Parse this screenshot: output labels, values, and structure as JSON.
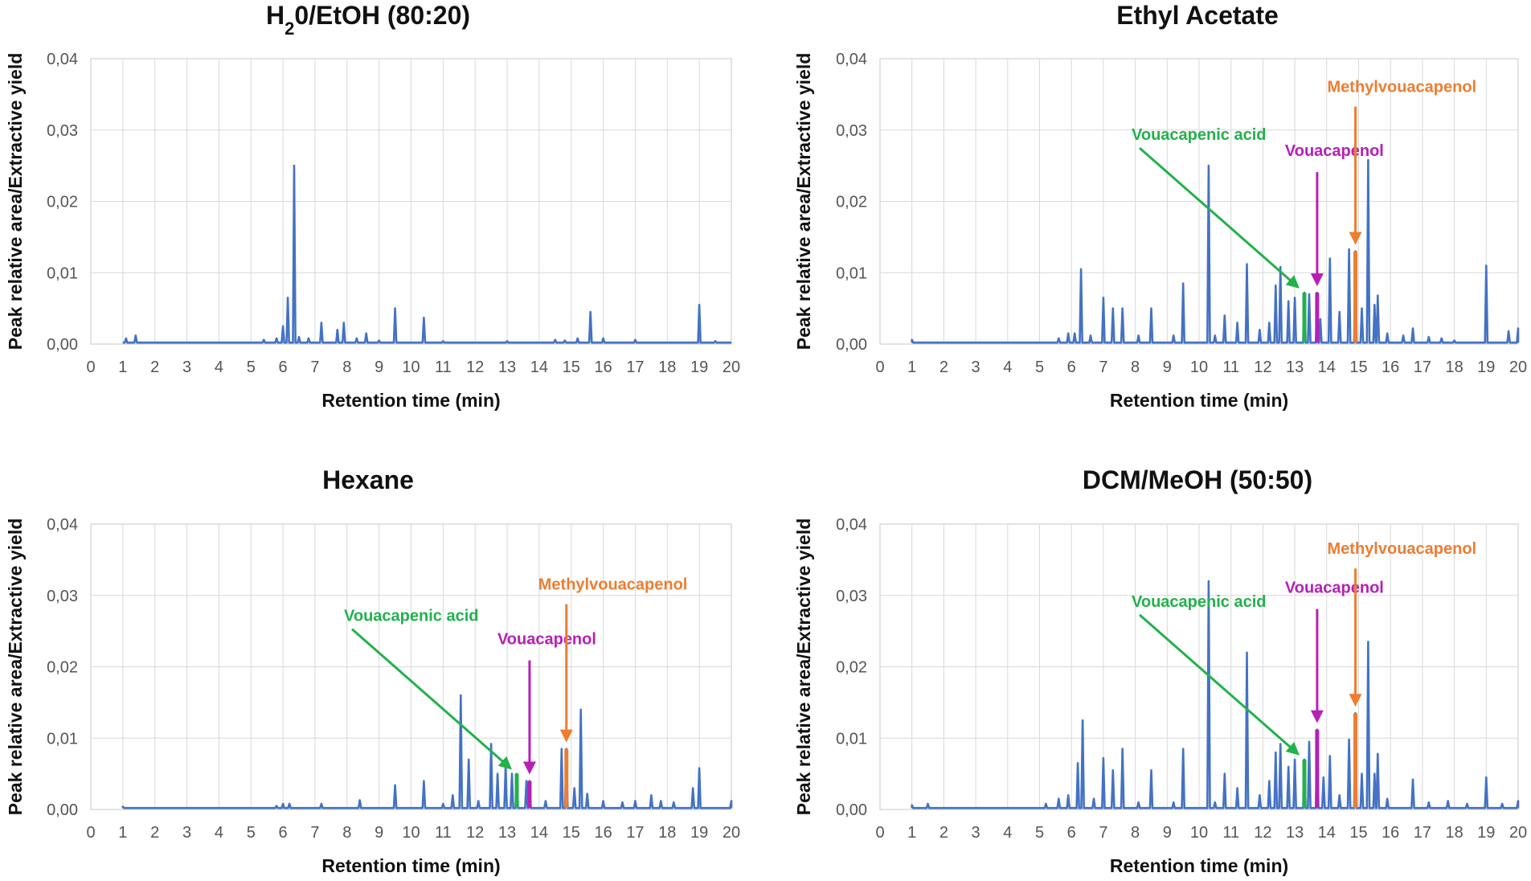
{
  "chart_data": [
    {
      "type": "line",
      "title_main": "H",
      "title_sub": "2",
      "title_rest": "0/EtOH (80:20)",
      "xlabel": "Retention time (min)",
      "ylabel": "Peak relative area/Extractive yield",
      "xlim": [
        0,
        20
      ],
      "ylim": [
        0,
        0.04
      ],
      "xticks": [
        "0",
        "1",
        "2",
        "3",
        "4",
        "5",
        "6",
        "7",
        "8",
        "9",
        "10",
        "11",
        "12",
        "13",
        "14",
        "15",
        "16",
        "17",
        "18",
        "19",
        "20"
      ],
      "yticks": [
        "0,00",
        "0,01",
        "0,02",
        "0,03",
        "0,04"
      ],
      "series_color": "#4472c4",
      "start": 1.0,
      "baseline": 0.0002,
      "peaks": [
        [
          1.1,
          0.0008
        ],
        [
          1.4,
          0.0012
        ],
        [
          5.4,
          0.0006
        ],
        [
          5.8,
          0.0008
        ],
        [
          6.0,
          0.0025
        ],
        [
          6.15,
          0.0065
        ],
        [
          6.35,
          0.025
        ],
        [
          6.5,
          0.001
        ],
        [
          6.8,
          0.0008
        ],
        [
          7.2,
          0.003
        ],
        [
          7.7,
          0.002
        ],
        [
          7.9,
          0.003
        ],
        [
          8.3,
          0.0008
        ],
        [
          8.6,
          0.0015
        ],
        [
          9.0,
          0.0005
        ],
        [
          9.5,
          0.005
        ],
        [
          10.4,
          0.0037
        ],
        [
          11.0,
          0.0004
        ],
        [
          13.0,
          0.0004
        ],
        [
          14.5,
          0.0006
        ],
        [
          14.8,
          0.0005
        ],
        [
          15.2,
          0.0008
        ],
        [
          15.6,
          0.0045
        ],
        [
          16.0,
          0.0008
        ],
        [
          17.0,
          0.0006
        ],
        [
          19.0,
          0.0055
        ],
        [
          19.5,
          0.0004
        ]
      ],
      "annotations": []
    },
    {
      "type": "line",
      "title_main": "Ethyl Acetate",
      "title_sub": "",
      "title_rest": "",
      "xlabel": "Retention time (min)",
      "ylabel": "Peak relative area/Extractive yield",
      "xlim": [
        0,
        20
      ],
      "ylim": [
        0,
        0.04
      ],
      "xticks": [
        "0",
        "1",
        "2",
        "3",
        "4",
        "5",
        "6",
        "7",
        "8",
        "9",
        "10",
        "11",
        "12",
        "13",
        "14",
        "15",
        "16",
        "17",
        "18",
        "19",
        "20"
      ],
      "yticks": [
        "0,00",
        "0,01",
        "0,02",
        "0,03",
        "0,04"
      ],
      "series_color": "#4472c4",
      "start": 1.0,
      "baseline": 0.0002,
      "peaks": [
        [
          1.0,
          0.0006
        ],
        [
          5.6,
          0.0008
        ],
        [
          5.9,
          0.0015
        ],
        [
          6.1,
          0.0015
        ],
        [
          6.3,
          0.0105
        ],
        [
          6.6,
          0.0012
        ],
        [
          7.0,
          0.0065
        ],
        [
          7.3,
          0.005
        ],
        [
          7.6,
          0.005
        ],
        [
          8.1,
          0.0012
        ],
        [
          8.5,
          0.005
        ],
        [
          9.2,
          0.0012
        ],
        [
          9.5,
          0.0085
        ],
        [
          10.3,
          0.025
        ],
        [
          10.5,
          0.0012
        ],
        [
          10.8,
          0.004
        ],
        [
          11.2,
          0.003
        ],
        [
          11.5,
          0.0112
        ],
        [
          11.9,
          0.002
        ],
        [
          12.2,
          0.003
        ],
        [
          12.4,
          0.0082
        ],
        [
          12.55,
          0.0108
        ],
        [
          12.8,
          0.006
        ],
        [
          13.0,
          0.0065
        ],
        [
          13.3,
          0.0072
        ],
        [
          13.45,
          0.007
        ],
        [
          13.7,
          0.0072
        ],
        [
          13.8,
          0.0035
        ],
        [
          14.1,
          0.012
        ],
        [
          14.4,
          0.0045
        ],
        [
          14.7,
          0.0133
        ],
        [
          14.9,
          0.013
        ],
        [
          15.1,
          0.005
        ],
        [
          15.3,
          0.0258
        ],
        [
          15.5,
          0.0055
        ],
        [
          15.6,
          0.0068
        ],
        [
          15.9,
          0.0015
        ],
        [
          16.4,
          0.0012
        ],
        [
          16.7,
          0.0022
        ],
        [
          17.2,
          0.001
        ],
        [
          17.6,
          0.0008
        ],
        [
          18.0,
          0.0005
        ],
        [
          19.0,
          0.011
        ],
        [
          19.7,
          0.0018
        ],
        [
          20.0,
          0.0022
        ]
      ],
      "annotations": [
        {
          "label": "Vouacapenic acid",
          "color": "#22b14c",
          "x": 13.3,
          "y": 0.0072
        },
        {
          "label": "Vouacapenol",
          "color": "#b620b6",
          "x": 13.7,
          "y": 0.0072
        },
        {
          "label": "Methylvouacapenol",
          "color": "#ed7d31",
          "x": 14.9,
          "y": 0.013
        }
      ]
    },
    {
      "type": "line",
      "title_main": "Hexane",
      "title_sub": "",
      "title_rest": "",
      "xlabel": "Retention time (min)",
      "ylabel": "Peak relative area/Extractive yield",
      "xlim": [
        0,
        20
      ],
      "ylim": [
        0,
        0.04
      ],
      "xticks": [
        "0",
        "1",
        "2",
        "3",
        "4",
        "5",
        "6",
        "7",
        "8",
        "9",
        "10",
        "11",
        "12",
        "13",
        "14",
        "15",
        "16",
        "17",
        "18",
        "19",
        "20"
      ],
      "yticks": [
        "0,00",
        "0,01",
        "0,02",
        "0,03",
        "0,04"
      ],
      "series_color": "#4472c4",
      "start": 1.0,
      "baseline": 0.0002,
      "peaks": [
        [
          1.0,
          0.0004
        ],
        [
          5.8,
          0.0005
        ],
        [
          6.0,
          0.0008
        ],
        [
          6.2,
          0.0008
        ],
        [
          7.2,
          0.0008
        ],
        [
          8.4,
          0.0013
        ],
        [
          9.5,
          0.0034
        ],
        [
          10.4,
          0.004
        ],
        [
          11.0,
          0.0008
        ],
        [
          11.3,
          0.002
        ],
        [
          11.55,
          0.016
        ],
        [
          11.8,
          0.007
        ],
        [
          12.1,
          0.0012
        ],
        [
          12.5,
          0.0092
        ],
        [
          12.7,
          0.005
        ],
        [
          12.95,
          0.006
        ],
        [
          13.15,
          0.005
        ],
        [
          13.3,
          0.005
        ],
        [
          13.6,
          0.004
        ],
        [
          13.7,
          0.004
        ],
        [
          14.2,
          0.0012
        ],
        [
          14.7,
          0.0085
        ],
        [
          14.85,
          0.0085
        ],
        [
          15.1,
          0.003
        ],
        [
          15.3,
          0.014
        ],
        [
          15.5,
          0.0022
        ],
        [
          16.0,
          0.0012
        ],
        [
          16.6,
          0.001
        ],
        [
          17.0,
          0.0012
        ],
        [
          17.5,
          0.002
        ],
        [
          17.8,
          0.0012
        ],
        [
          18.2,
          0.001
        ],
        [
          18.8,
          0.003
        ],
        [
          19.0,
          0.0058
        ],
        [
          20.0,
          0.0012
        ]
      ],
      "annotations": [
        {
          "label": "Vouacapenic acid",
          "color": "#22b14c",
          "x": 13.3,
          "y": 0.005
        },
        {
          "label": "Vouacapenol",
          "color": "#b620b6",
          "x": 13.7,
          "y": 0.004
        },
        {
          "label": "Methylvouacapenol",
          "color": "#ed7d31",
          "x": 14.85,
          "y": 0.0085
        }
      ]
    },
    {
      "type": "line",
      "title_main": "DCM/MeOH (50:50)",
      "title_sub": "",
      "title_rest": "",
      "xlabel": "Retention time (min)",
      "ylabel": "Peak relative area/Extractive yield",
      "xlim": [
        0,
        20
      ],
      "ylim": [
        0,
        0.04
      ],
      "xticks": [
        "0",
        "1",
        "2",
        "3",
        "4",
        "5",
        "6",
        "7",
        "8",
        "9",
        "10",
        "11",
        "12",
        "13",
        "14",
        "15",
        "16",
        "17",
        "18",
        "19",
        "20"
      ],
      "yticks": [
        "0,00",
        "0,01",
        "0,02",
        "0,03",
        "0,04"
      ],
      "series_color": "#4472c4",
      "start": 1.0,
      "baseline": 0.0002,
      "peaks": [
        [
          1.0,
          0.0006
        ],
        [
          1.5,
          0.0008
        ],
        [
          5.2,
          0.0008
        ],
        [
          5.6,
          0.0015
        ],
        [
          5.9,
          0.002
        ],
        [
          6.2,
          0.0065
        ],
        [
          6.35,
          0.0125
        ],
        [
          6.7,
          0.0015
        ],
        [
          7.0,
          0.0072
        ],
        [
          7.3,
          0.0055
        ],
        [
          7.6,
          0.0085
        ],
        [
          8.1,
          0.001
        ],
        [
          8.5,
          0.0055
        ],
        [
          9.2,
          0.001
        ],
        [
          9.5,
          0.0085
        ],
        [
          10.3,
          0.032
        ],
        [
          10.5,
          0.001
        ],
        [
          10.8,
          0.005
        ],
        [
          11.2,
          0.003
        ],
        [
          11.5,
          0.022
        ],
        [
          11.9,
          0.002
        ],
        [
          12.2,
          0.004
        ],
        [
          12.4,
          0.008
        ],
        [
          12.55,
          0.0092
        ],
        [
          12.8,
          0.006
        ],
        [
          13.0,
          0.007
        ],
        [
          13.3,
          0.007
        ],
        [
          13.45,
          0.0095
        ],
        [
          13.7,
          0.0112
        ],
        [
          13.9,
          0.0045
        ],
        [
          14.1,
          0.0075
        ],
        [
          14.4,
          0.002
        ],
        [
          14.7,
          0.0098
        ],
        [
          14.9,
          0.0135
        ],
        [
          15.1,
          0.005
        ],
        [
          15.3,
          0.0235
        ],
        [
          15.5,
          0.005
        ],
        [
          15.6,
          0.0078
        ],
        [
          15.9,
          0.0015
        ],
        [
          16.7,
          0.0042
        ],
        [
          17.2,
          0.001
        ],
        [
          17.8,
          0.0012
        ],
        [
          18.4,
          0.0008
        ],
        [
          19.0,
          0.0045
        ],
        [
          19.5,
          0.0008
        ],
        [
          20.0,
          0.0012
        ]
      ],
      "annotations": [
        {
          "label": "Vouacapenic acid",
          "color": "#22b14c",
          "x": 13.3,
          "y": 0.007
        },
        {
          "label": "Vouacapenol",
          "color": "#b620b6",
          "x": 13.7,
          "y": 0.0112
        },
        {
          "label": "Methylvouacapenol",
          "color": "#ed7d31",
          "x": 14.9,
          "y": 0.0135
        }
      ]
    }
  ]
}
